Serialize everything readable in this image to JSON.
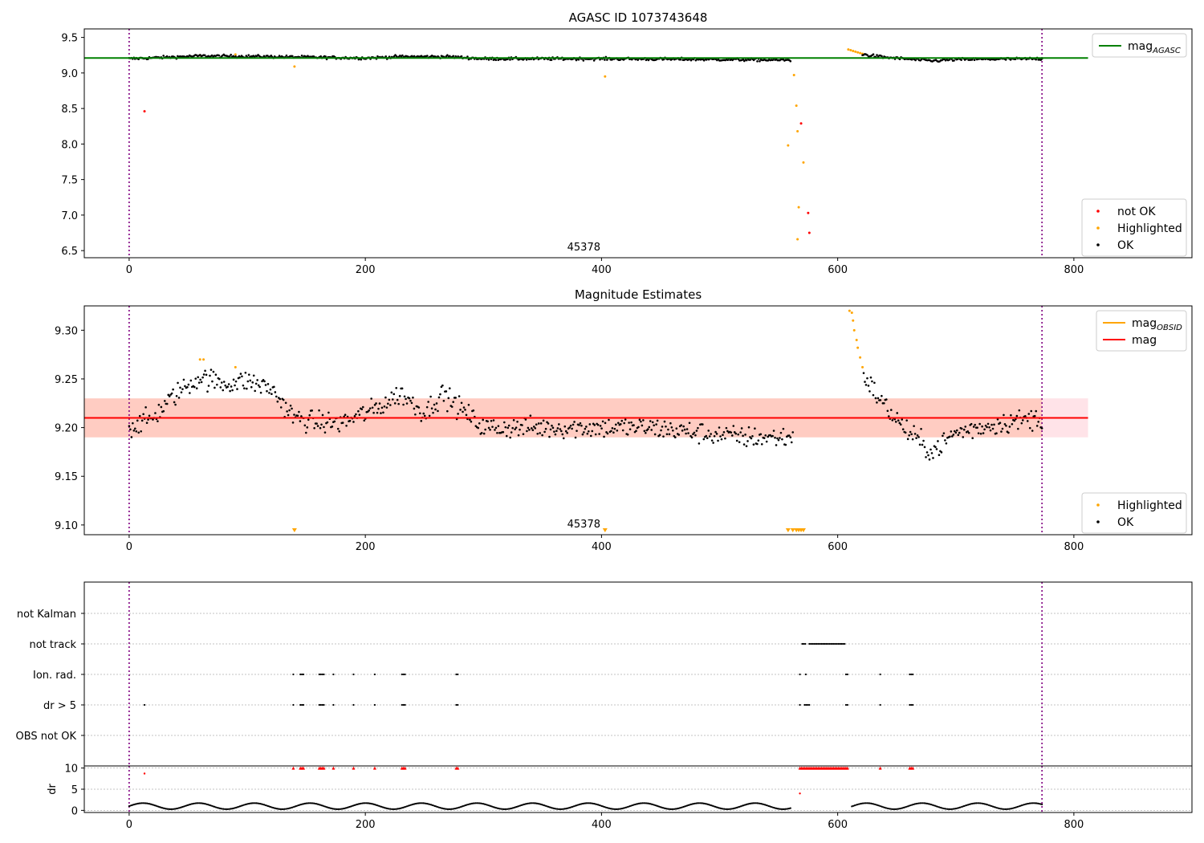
{
  "chart_data": [
    {
      "id": "agasc",
      "type": "scatter",
      "title": "AGASC ID 1073743648",
      "xlim": [
        -38,
        900
      ],
      "ylim": [
        6.4,
        9.62
      ],
      "xticks": [
        0,
        200,
        400,
        600,
        800
      ],
      "yticks": [
        6.5,
        7.0,
        7.5,
        8.0,
        8.5,
        9.0,
        9.5
      ],
      "ytick_labels": [
        "6.5",
        "7.0",
        "7.5",
        "8.0",
        "8.5",
        "9.0",
        "9.5"
      ],
      "obs_boundaries": [
        0,
        773
      ],
      "annotation": "45378",
      "annotation_x": 385,
      "ref_line": {
        "name": "mag",
        "subscript": "AGASC",
        "value": 9.21,
        "x_end": 812,
        "color": "#008000"
      },
      "legend_top": [
        {
          "name": "mag",
          "subscript": "AGASC",
          "color": "#008000",
          "kind": "line"
        }
      ],
      "legend_bottom": [
        {
          "name": "not OK",
          "color": "#ff0000",
          "kind": "dot"
        },
        {
          "name": "Highlighted",
          "color": "#ffa500",
          "kind": "dot"
        },
        {
          "name": "OK",
          "color": "#000000",
          "kind": "dot"
        }
      ],
      "series": [
        {
          "name": "not OK",
          "color": "#ff0000",
          "points": [
            [
              13,
              8.46
            ],
            [
              569,
              8.29
            ],
            [
              575,
              7.03
            ],
            [
              576,
              6.75
            ]
          ]
        },
        {
          "name": "Highlighted",
          "color": "#ffa500",
          "points": [
            [
              60,
              9.25
            ],
            [
              90,
              9.26
            ],
            [
              140,
              9.09
            ],
            [
              403,
              8.95
            ],
            [
              558,
              7.98
            ],
            [
              563,
              8.97
            ],
            [
              565,
              8.54
            ],
            [
              566,
              8.18
            ],
            [
              567,
              7.11
            ],
            [
              566,
              6.66
            ],
            [
              571,
              7.74
            ],
            [
              609,
              9.33
            ],
            [
              611,
              9.32
            ],
            [
              613,
              9.31
            ],
            [
              615,
              9.3
            ],
            [
              617,
              9.29
            ],
            [
              619,
              9.28
            ],
            [
              621,
              9.27
            ]
          ]
        },
        {
          "name": "OK",
          "color": "#000000",
          "segments": [
            {
              "x": [
                0,
                560
              ],
              "trend": [
                [
                  0,
                  9.2
                ],
                [
                  60,
                  9.24
                ],
                [
                  120,
                  9.23
                ],
                [
                  200,
                  9.21
                ],
                [
                  230,
                  9.23
                ],
                [
                  270,
                  9.23
                ],
                [
                  300,
                  9.2
                ],
                [
                  400,
                  9.2
                ],
                [
                  500,
                  9.19
                ],
                [
                  560,
                  9.18
                ]
              ],
              "jitter": 0.02,
              "n": 560
            },
            {
              "x": [
                621,
                773
              ],
              "trend": [
                [
                  621,
                  9.26
                ],
                [
                  640,
                  9.22
                ],
                [
                  680,
                  9.17
                ],
                [
                  700,
                  9.19
                ],
                [
                  773,
                  9.2
                ]
              ],
              "jitter": 0.02,
              "n": 150
            }
          ]
        }
      ]
    },
    {
      "id": "estimates",
      "type": "scatter",
      "title": "Magnitude Estimates",
      "xlim": [
        -38,
        900
      ],
      "ylim": [
        9.09,
        9.325
      ],
      "xticks": [
        0,
        200,
        400,
        600,
        800
      ],
      "yticks": [
        9.1,
        9.15,
        9.2,
        9.25,
        9.3
      ],
      "ytick_labels": [
        "9.10",
        "9.15",
        "9.20",
        "9.25",
        "9.30"
      ],
      "obs_boundaries": [
        0,
        773
      ],
      "annotation": "45378",
      "annotation_x": 385,
      "band": {
        "low": 9.19,
        "high": 9.23,
        "x_end": 812,
        "color": "#ffc0cb"
      },
      "band_obsid": {
        "low": 9.19,
        "high": 9.23,
        "x_end": 773,
        "color": "#ffa07a"
      },
      "mag_line": {
        "name": "mag",
        "value": 9.21,
        "x_end": 812,
        "color": "#ff0000"
      },
      "legend_top": [
        {
          "name": "mag",
          "subscript": "OBSID",
          "color": "#ffa500",
          "kind": "line"
        },
        {
          "name": "mag",
          "color": "#ff0000",
          "kind": "line"
        }
      ],
      "legend_bottom": [
        {
          "name": "Highlighted",
          "color": "#ffa500",
          "kind": "dot"
        },
        {
          "name": "OK",
          "color": "#000000",
          "kind": "dot"
        }
      ],
      "offscale_markers": {
        "color": "#ffa500",
        "x": [
          140,
          403,
          558,
          562,
          565,
          567,
          569,
          571
        ]
      },
      "series": [
        {
          "name": "Highlighted",
          "color": "#ffa500",
          "points": [
            [
              60,
              9.27
            ],
            [
              63,
              9.27
            ],
            [
              90,
              9.262
            ],
            [
              610,
              9.32
            ],
            [
              612,
              9.318
            ],
            [
              613,
              9.31
            ],
            [
              614,
              9.3
            ],
            [
              616,
              9.29
            ],
            [
              617,
              9.282
            ],
            [
              619,
              9.272
            ],
            [
              621,
              9.262
            ]
          ]
        },
        {
          "name": "OK",
          "color": "#000000",
          "segments": [
            {
              "x": [
                0,
                562
              ],
              "trend": [
                [
                  0,
                  9.2
                ],
                [
                  20,
                  9.21
                ],
                [
                  40,
                  9.235
                ],
                [
                  60,
                  9.252
                ],
                [
                  80,
                  9.245
                ],
                [
                  100,
                  9.248
                ],
                [
                  120,
                  9.24
                ],
                [
                  140,
                  9.21
                ],
                [
                  160,
                  9.205
                ],
                [
                  180,
                  9.205
                ],
                [
                  210,
                  9.22
                ],
                [
                  230,
                  9.235
                ],
                [
                  250,
                  9.215
                ],
                [
                  265,
                  9.235
                ],
                [
                  280,
                  9.22
                ],
                [
                  300,
                  9.2
                ],
                [
                  350,
                  9.2
                ],
                [
                  400,
                  9.2
                ],
                [
                  440,
                  9.2
                ],
                [
                  480,
                  9.195
                ],
                [
                  520,
                  9.19
                ],
                [
                  562,
                  9.19
                ]
              ],
              "jitter": 0.011,
              "n": 560
            },
            {
              "x": [
                622,
                773
              ],
              "trend": [
                [
                  622,
                  9.255
                ],
                [
                  632,
                  9.235
                ],
                [
                  645,
                  9.215
                ],
                [
                  660,
                  9.195
                ],
                [
                  680,
                  9.175
                ],
                [
                  700,
                  9.195
                ],
                [
                  740,
                  9.205
                ],
                [
                  773,
                  9.21
                ]
              ],
              "jitter": 0.011,
              "n": 150
            }
          ]
        }
      ]
    },
    {
      "id": "flags",
      "type": "scatter",
      "xlim": [
        -38,
        900
      ],
      "categories": [
        "not Kalman",
        "not track",
        "Ion. rad.",
        "dr > 5",
        "OBS not OK"
      ],
      "obs_boundaries": [
        0,
        773
      ],
      "flags": {
        "not track": [
          [
            570,
            573
          ],
          [
            576,
            607
          ]
        ],
        "Ion. rad.": [
          [
            139,
            139
          ],
          [
            145,
            148
          ],
          [
            161,
            166
          ],
          [
            173,
            173
          ],
          [
            190,
            190
          ],
          [
            208,
            208
          ],
          [
            231,
            234
          ],
          [
            277,
            279
          ],
          [
            568,
            568
          ],
          [
            573,
            573
          ],
          [
            607,
            609
          ],
          [
            636,
            636
          ],
          [
            661,
            664
          ]
        ],
        "dr > 5": [
          [
            13,
            13
          ],
          [
            139,
            139
          ],
          [
            145,
            148
          ],
          [
            161,
            166
          ],
          [
            173,
            173
          ],
          [
            190,
            190
          ],
          [
            208,
            208
          ],
          [
            231,
            234
          ],
          [
            277,
            279
          ],
          [
            568,
            568
          ],
          [
            572,
            576
          ],
          [
            607,
            609
          ],
          [
            636,
            636
          ],
          [
            661,
            664
          ]
        ]
      }
    },
    {
      "id": "dr",
      "type": "scatter",
      "ylabel": "dr",
      "xlim": [
        -38,
        900
      ],
      "ylim": [
        -0.5,
        10.5
      ],
      "xticks": [
        0,
        200,
        400,
        600,
        800
      ],
      "yticks": [
        0,
        5,
        10
      ],
      "ytick_labels": [
        "0",
        "5",
        "10"
      ],
      "obs_boundaries": [
        0,
        773
      ],
      "capped": {
        "color": "#ff0000",
        "value": 10,
        "x": [
          [
            139,
            139
          ],
          [
            145,
            148
          ],
          [
            161,
            166
          ],
          [
            173,
            173
          ],
          [
            190,
            190
          ],
          [
            208,
            208
          ],
          [
            231,
            234
          ],
          [
            277,
            279
          ],
          [
            568,
            609
          ],
          [
            636,
            636
          ],
          [
            661,
            664
          ]
        ]
      },
      "series": [
        {
          "name": "not OK",
          "color": "#ff0000",
          "points": [
            [
              13,
              8.7
            ],
            [
              568,
              4.0
            ]
          ]
        },
        {
          "name": "OK",
          "color": "#000000",
          "segments": [
            {
              "x": [
                0,
                560
              ],
              "trend": [
                [
                  0,
                  1.0
                ],
                [
                  560,
                  1.0
                ]
              ],
              "jitter": 0.0,
              "wave": 0.8,
              "n": 520
            },
            {
              "x": [
                612,
                773
              ],
              "trend": [
                [
                  612,
                  1.0
                ],
                [
                  773,
                  1.0
                ]
              ],
              "jitter": 0.0,
              "wave": 0.8,
              "n": 140
            }
          ]
        }
      ]
    }
  ]
}
